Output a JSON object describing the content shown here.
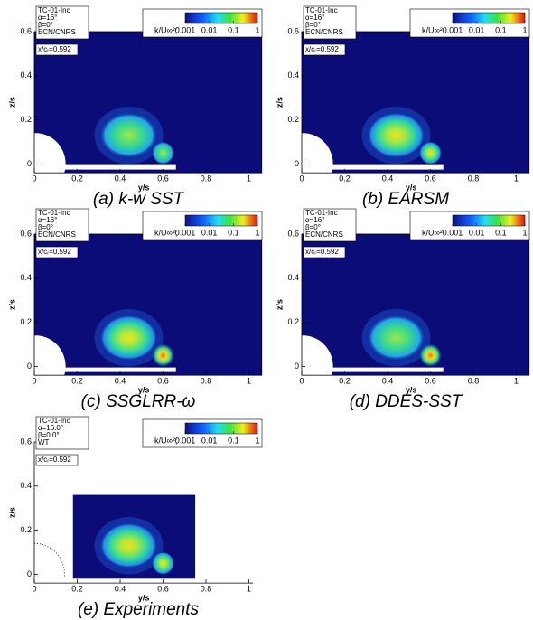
{
  "chart_data": [
    {
      "type": "contour",
      "caption": "(a)  k-w SST",
      "info": [
        "TC-01-Inc",
        "α=16°",
        "β=0°",
        "ECN/CNRS"
      ],
      "station": "x/cᵣ=0.592",
      "xlabel": "y/s",
      "ylabel": "z/s",
      "xlim": [
        0,
        1.06
      ],
      "ylim": [
        -0.04,
        0.6
      ],
      "xticks": [
        0,
        0.2,
        0.4,
        0.6,
        0.8,
        1
      ],
      "yticks": [
        0,
        0.2,
        0.4,
        0.6
      ],
      "colorbar_label": "k/U∞²;",
      "colorbar_lim": [
        0.001,
        1
      ],
      "colorbar_ticks": [
        0.001,
        0.01,
        0.1,
        1
      ],
      "colorbar_scale": "log",
      "frame": true
    },
    {
      "type": "contour",
      "caption": "(b)  EARSM",
      "info": [
        "TC-01-Inc",
        "α=16°",
        "β=0°",
        "ECN/CNRS"
      ],
      "station": "x/cᵣ=0.592",
      "xlabel": "y/s",
      "ylabel": "z/s",
      "xlim": [
        0,
        1.06
      ],
      "ylim": [
        -0.04,
        0.6
      ],
      "xticks": [
        0,
        0.2,
        0.4,
        0.6,
        0.8,
        1
      ],
      "yticks": [
        0,
        0.2,
        0.4,
        0.6
      ],
      "colorbar_label": "k/U∞²;",
      "colorbar_lim": [
        0.001,
        1
      ],
      "colorbar_ticks": [
        0.001,
        0.01,
        0.1,
        1
      ],
      "colorbar_scale": "log",
      "frame": true
    },
    {
      "type": "contour",
      "caption": "(c)  SSGLRR-ω",
      "info": [
        "TC-01-Inc",
        "α=16°",
        "β=0°",
        "ECN/CNRS"
      ],
      "station": "x/cᵣ=0.592",
      "xlabel": "y/s",
      "ylabel": "z/s",
      "xlim": [
        0,
        1.06
      ],
      "ylim": [
        -0.04,
        0.6
      ],
      "xticks": [
        0,
        0.2,
        0.4,
        0.6,
        0.8,
        1
      ],
      "yticks": [
        0,
        0.2,
        0.4,
        0.6
      ],
      "colorbar_label": "k/U∞²;",
      "colorbar_lim": [
        0.001,
        1
      ],
      "colorbar_ticks": [
        0.001,
        0.01,
        0.1,
        1
      ],
      "colorbar_scale": "log",
      "frame": true
    },
    {
      "type": "contour",
      "caption": "(d)  DDES-SST",
      "info": [
        "TC-01-Inc",
        "α=16°",
        "β=0°",
        "ECN/CNRS"
      ],
      "station": "x/cᵣ=0.592",
      "xlabel": "y/s",
      "ylabel": "z/s",
      "xlim": [
        0,
        1.06
      ],
      "ylim": [
        -0.04,
        0.6
      ],
      "xticks": [
        0,
        0.2,
        0.4,
        0.6,
        0.8,
        1
      ],
      "yticks": [
        0,
        0.2,
        0.4,
        0.6
      ],
      "colorbar_label": "k/U∞²;",
      "colorbar_lim": [
        0.001,
        1
      ],
      "colorbar_ticks": [
        0.001,
        0.01,
        0.1,
        1
      ],
      "colorbar_scale": "log",
      "frame": true
    },
    {
      "type": "contour",
      "caption": "(e) Experiments",
      "info": [
        "TC-01-Inc",
        "α=16.0°",
        "β=0.0°",
        "WT"
      ],
      "station": "x/cᵣ=0.592",
      "xlabel": "y/s",
      "ylabel": "z/s",
      "xlim": [
        0,
        1.06
      ],
      "ylim": [
        -0.04,
        0.6
      ],
      "xticks": [
        0,
        0.2,
        0.4,
        0.6,
        0.8,
        1
      ],
      "yticks": [
        0,
        0.2,
        0.4,
        0.6
      ],
      "colorbar_label": "k/U∞²;",
      "colorbar_lim": [
        0.001,
        1
      ],
      "colorbar_ticks": [
        0.001,
        0.01,
        0.1,
        1
      ],
      "colorbar_scale": "log",
      "frame": false
    }
  ]
}
